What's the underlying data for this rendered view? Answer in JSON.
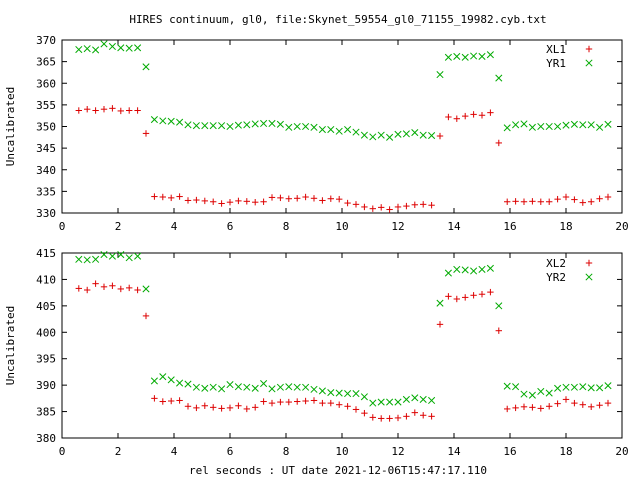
{
  "title": "HIRES continuum, gl0, file:Skynet_59554_gl0_71155_19982.cyb.txt",
  "xlabel": "rel seconds : UT date 2021-12-06T15:47:17.110",
  "colors": {
    "plus": "#dd0000",
    "cross": "#00aa00"
  },
  "chart_data": [
    {
      "type": "scatter",
      "xlabel": "",
      "ylabel": "Uncalibrated",
      "xlim": [
        0,
        20
      ],
      "ylim": [
        330,
        370
      ],
      "xticks": [
        0,
        2,
        4,
        6,
        8,
        10,
        12,
        14,
        16,
        18,
        20
      ],
      "yticks": [
        330,
        335,
        340,
        345,
        350,
        355,
        360,
        365,
        370
      ],
      "legend_position": "top-right",
      "series": [
        {
          "name": "XL1",
          "marker": "plus",
          "x": [
            0.6,
            0.9,
            1.2,
            1.5,
            1.8,
            2.1,
            2.4,
            2.7,
            3.0,
            3.3,
            3.6,
            3.9,
            4.2,
            4.5,
            4.8,
            5.1,
            5.4,
            5.7,
            6.0,
            6.3,
            6.6,
            6.9,
            7.2,
            7.5,
            7.8,
            8.1,
            8.4,
            8.7,
            9.0,
            9.3,
            9.6,
            9.9,
            10.2,
            10.5,
            10.8,
            11.1,
            11.4,
            11.7,
            12.0,
            12.3,
            12.6,
            12.9,
            13.2,
            13.5,
            13.8,
            14.1,
            14.4,
            14.7,
            15.0,
            15.3,
            15.6,
            15.9,
            16.2,
            16.5,
            16.8,
            17.1,
            17.4,
            17.7,
            18.0,
            18.3,
            18.6,
            18.9,
            19.2,
            19.5
          ],
          "y": [
            353.7,
            354.0,
            353.7,
            354.0,
            354.2,
            353.6,
            353.7,
            353.7,
            348.4,
            333.8,
            333.7,
            333.5,
            333.8,
            332.9,
            333.0,
            332.8,
            332.6,
            332.2,
            332.5,
            332.8,
            332.7,
            332.5,
            332.6,
            333.6,
            333.5,
            333.3,
            333.4,
            333.7,
            333.4,
            332.9,
            333.3,
            333.2,
            332.3,
            332.0,
            331.4,
            331.0,
            331.3,
            330.8,
            331.4,
            331.6,
            331.9,
            332.0,
            331.8,
            347.8,
            352.2,
            351.8,
            352.4,
            352.8,
            352.6,
            353.2,
            346.2,
            332.6,
            332.7,
            332.6,
            332.7,
            332.6,
            332.6,
            333.2,
            333.7,
            333.1,
            332.4,
            332.6,
            333.3,
            333.7
          ]
        },
        {
          "name": "YR1",
          "marker": "cross",
          "x": [
            0.6,
            0.9,
            1.2,
            1.5,
            1.8,
            2.1,
            2.4,
            2.7,
            3.0,
            3.3,
            3.6,
            3.9,
            4.2,
            4.5,
            4.8,
            5.1,
            5.4,
            5.7,
            6.0,
            6.3,
            6.6,
            6.9,
            7.2,
            7.5,
            7.8,
            8.1,
            8.4,
            8.7,
            9.0,
            9.3,
            9.6,
            9.9,
            10.2,
            10.5,
            10.8,
            11.1,
            11.4,
            11.7,
            12.0,
            12.3,
            12.6,
            12.9,
            13.2,
            13.5,
            13.8,
            14.1,
            14.4,
            14.7,
            15.0,
            15.3,
            15.6,
            15.9,
            16.2,
            16.5,
            16.8,
            17.1,
            17.4,
            17.7,
            18.0,
            18.3,
            18.6,
            18.9,
            19.2,
            19.5
          ],
          "y": [
            367.8,
            368.0,
            367.7,
            369.1,
            368.5,
            368.2,
            368.1,
            368.2,
            363.8,
            351.6,
            351.3,
            351.2,
            351.0,
            350.4,
            350.2,
            350.2,
            350.2,
            350.2,
            350.0,
            350.3,
            350.4,
            350.6,
            350.7,
            350.7,
            350.5,
            349.8,
            350.0,
            350.0,
            349.8,
            349.3,
            349.3,
            348.9,
            349.3,
            348.7,
            348.0,
            347.6,
            348.0,
            347.5,
            348.2,
            348.3,
            348.6,
            348.0,
            347.9,
            362.0,
            366.0,
            366.2,
            366.0,
            366.3,
            366.2,
            366.6,
            361.2,
            349.7,
            350.4,
            350.6,
            349.8,
            350.0,
            350.0,
            350.0,
            350.3,
            350.5,
            350.4,
            350.4,
            349.8,
            350.5
          ]
        }
      ]
    },
    {
      "type": "scatter",
      "xlabel": "rel seconds : UT date 2021-12-06T15:47:17.110",
      "ylabel": "Uncalibrated",
      "xlim": [
        0,
        20
      ],
      "ylim": [
        380,
        415
      ],
      "xticks": [
        0,
        2,
        4,
        6,
        8,
        10,
        12,
        14,
        16,
        18,
        20
      ],
      "yticks": [
        380,
        385,
        390,
        395,
        400,
        405,
        410,
        415
      ],
      "legend_position": "top-right",
      "series": [
        {
          "name": "XL2",
          "marker": "plus",
          "x": [
            0.6,
            0.9,
            1.2,
            1.5,
            1.8,
            2.1,
            2.4,
            2.7,
            3.0,
            3.3,
            3.6,
            3.9,
            4.2,
            4.5,
            4.8,
            5.1,
            5.4,
            5.7,
            6.0,
            6.3,
            6.6,
            6.9,
            7.2,
            7.5,
            7.8,
            8.1,
            8.4,
            8.7,
            9.0,
            9.3,
            9.6,
            9.9,
            10.2,
            10.5,
            10.8,
            11.1,
            11.4,
            11.7,
            12.0,
            12.3,
            12.6,
            12.9,
            13.2,
            13.5,
            13.8,
            14.1,
            14.4,
            14.7,
            15.0,
            15.3,
            15.6,
            15.9,
            16.2,
            16.5,
            16.8,
            17.1,
            17.4,
            17.7,
            18.0,
            18.3,
            18.6,
            18.9,
            19.2,
            19.5
          ],
          "y": [
            408.3,
            408.0,
            409.2,
            408.6,
            408.8,
            408.2,
            408.4,
            408.0,
            403.1,
            387.5,
            386.9,
            387.0,
            387.1,
            386.0,
            385.7,
            386.1,
            385.8,
            385.6,
            385.7,
            386.1,
            385.5,
            385.8,
            386.9,
            386.6,
            386.8,
            386.8,
            386.9,
            387.0,
            387.1,
            386.6,
            386.6,
            386.3,
            386.0,
            385.4,
            384.7,
            383.9,
            383.7,
            383.7,
            383.8,
            384.1,
            384.8,
            384.3,
            384.1,
            401.5,
            406.8,
            406.3,
            406.6,
            407.0,
            407.2,
            407.6,
            400.3,
            385.5,
            385.7,
            385.9,
            385.8,
            385.6,
            386.0,
            386.5,
            387.3,
            386.6,
            386.3,
            385.9,
            386.2,
            386.6
          ]
        },
        {
          "name": "YR2",
          "marker": "cross",
          "x": [
            0.6,
            0.9,
            1.2,
            1.5,
            1.8,
            2.1,
            2.4,
            2.7,
            3.0,
            3.3,
            3.6,
            3.9,
            4.2,
            4.5,
            4.8,
            5.1,
            5.4,
            5.7,
            6.0,
            6.3,
            6.6,
            6.9,
            7.2,
            7.5,
            7.8,
            8.1,
            8.4,
            8.7,
            9.0,
            9.3,
            9.6,
            9.9,
            10.2,
            10.5,
            10.8,
            11.1,
            11.4,
            11.7,
            12.0,
            12.3,
            12.6,
            12.9,
            13.2,
            13.5,
            13.8,
            14.1,
            14.4,
            14.7,
            15.0,
            15.3,
            15.6,
            15.9,
            16.2,
            16.5,
            16.8,
            17.1,
            17.4,
            17.7,
            18.0,
            18.3,
            18.6,
            18.9,
            19.2,
            19.5
          ],
          "y": [
            413.8,
            413.7,
            413.8,
            414.7,
            414.4,
            414.7,
            414.1,
            414.4,
            408.2,
            390.8,
            391.6,
            391.0,
            390.4,
            390.2,
            389.6,
            389.4,
            389.6,
            389.3,
            390.1,
            389.7,
            389.6,
            389.4,
            390.3,
            389.3,
            389.6,
            389.7,
            389.6,
            389.6,
            389.2,
            388.9,
            388.6,
            388.5,
            388.4,
            388.4,
            387.8,
            386.6,
            386.8,
            386.8,
            386.8,
            387.3,
            387.6,
            387.3,
            387.1,
            405.5,
            411.2,
            411.9,
            411.8,
            411.6,
            411.9,
            412.1,
            405.0,
            389.8,
            389.7,
            388.3,
            388.1,
            388.8,
            388.5,
            389.4,
            389.6,
            389.6,
            389.7,
            389.5,
            389.5,
            389.9
          ]
        }
      ]
    }
  ]
}
